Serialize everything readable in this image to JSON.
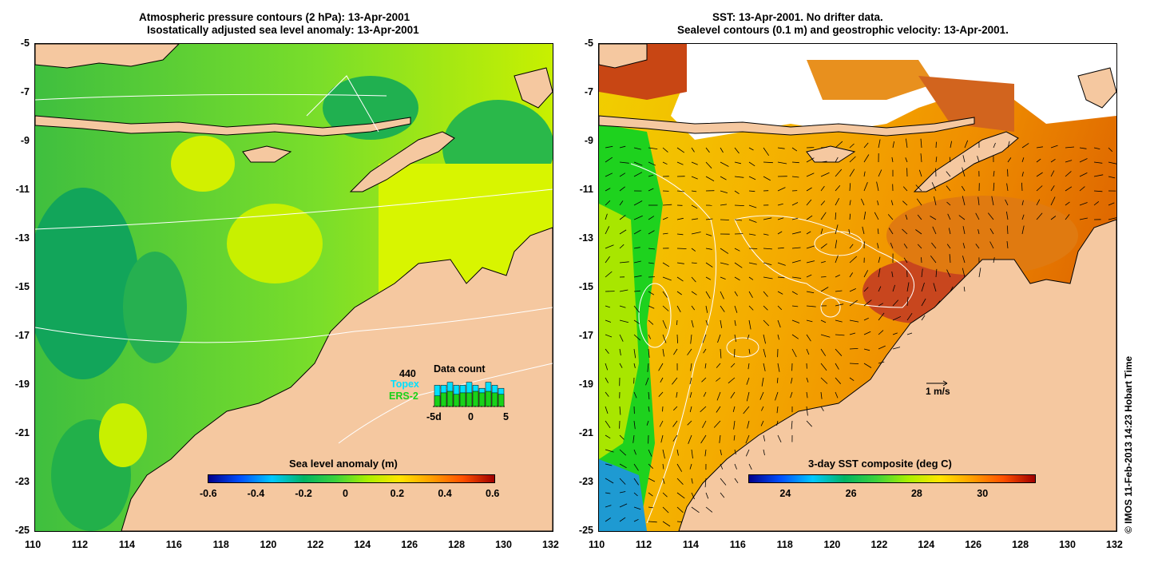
{
  "left_panel": {
    "title_line1": "Atmospheric pressure contours (2 hPa): 13-Apr-2001",
    "title_line2": "Isostatically adjusted sea level anomaly: 13-Apr-2001",
    "colorbar": {
      "title": "Sea level anomaly (m)",
      "ticks": [
        "-0.6",
        "-0.4",
        "-0.2",
        "0",
        "0.2",
        "0.4",
        "0.6"
      ]
    },
    "data_count": {
      "title": "Data count",
      "max_label": "440",
      "topex_label": "Topex",
      "ers_label": "ERS-2",
      "axis_ticks": [
        "-5d",
        "0",
        "5"
      ],
      "topex_values": [
        0.7,
        0.7,
        0.8,
        0.7,
        0.7,
        0.8,
        0.7,
        0.6,
        0.8,
        0.7,
        0.6
      ],
      "ers_values": [
        0.35,
        0.45,
        0.5,
        0.4,
        0.45,
        0.45,
        0.5,
        0.45,
        0.5,
        0.45,
        0.4
      ],
      "colors": {
        "topex": "#00e0ff",
        "ers": "#19d219"
      }
    }
  },
  "right_panel": {
    "title_line1": "SST: 13-Apr-2001. No drifter data.",
    "title_line2": "Sealevel contours (0.1 m) and geostrophic velocity: 13-Apr-2001.",
    "colorbar": {
      "title": "3-day SST composite (deg C)",
      "ticks": [
        "24",
        "26",
        "28",
        "30"
      ]
    },
    "scale_label": "1 m/s"
  },
  "axes": {
    "lon_ticks": [
      "110",
      "112",
      "114",
      "116",
      "118",
      "120",
      "122",
      "124",
      "126",
      "128",
      "130",
      "132"
    ],
    "lat_ticks": [
      "-5",
      "-7",
      "-9",
      "-11",
      "-13",
      "-15",
      "-17",
      "-19",
      "-21",
      "-23",
      "-25"
    ],
    "lon_range": [
      110,
      132
    ],
    "lat_range": [
      -5,
      -25
    ]
  },
  "credit": "© IMOS 11-Feb-2013 14:23 Hobart Time",
  "colors": {
    "land": "#f5c8a0",
    "sla_low": "#00a050",
    "sla_mid": "#aef000",
    "sst_warm": "#f5a000",
    "sst_hot": "#c83200",
    "sst_cool": "#1ec81e"
  }
}
